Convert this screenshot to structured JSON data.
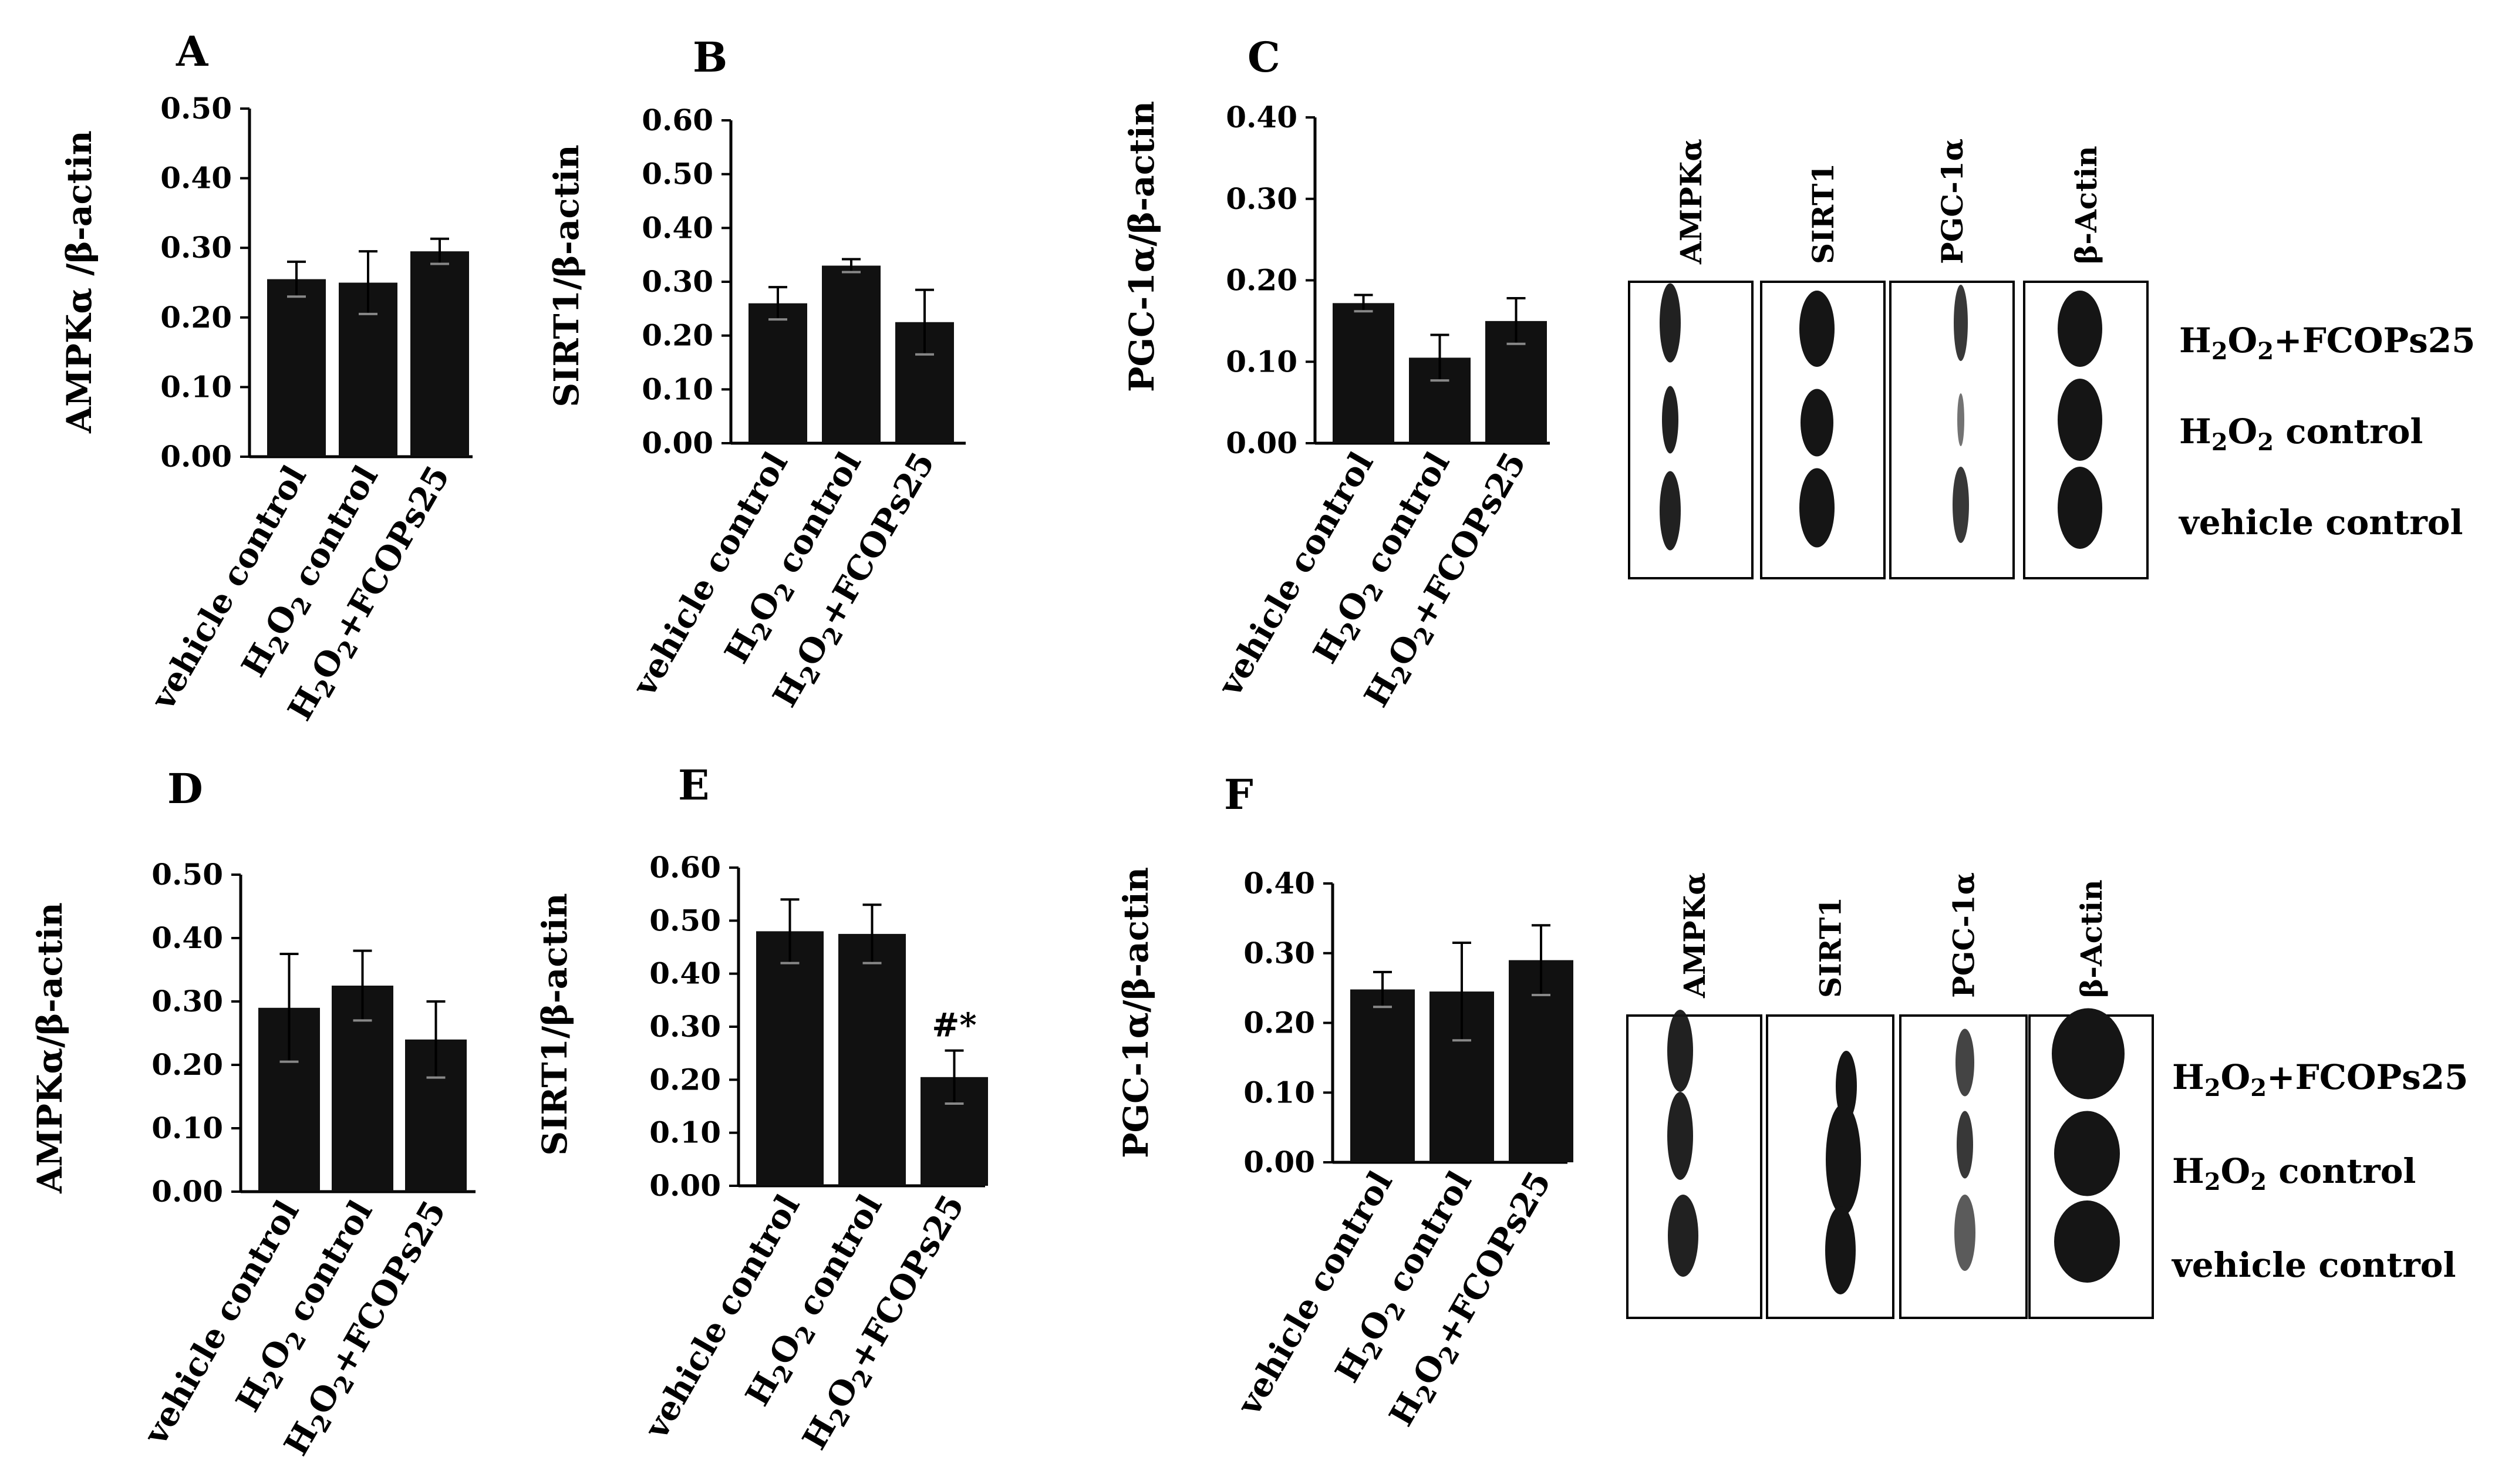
{
  "chart_data": [
    {
      "panel": "A",
      "type": "bar",
      "ylabel": "AMPKα /β-actin",
      "categories": [
        "vehicle control",
        "H2O2 control",
        "H2O2+FCOPs25"
      ],
      "values": [
        0.255,
        0.25,
        0.295
      ],
      "errors": [
        0.025,
        0.045,
        0.018
      ],
      "ylim": [
        0,
        0.5
      ],
      "yticks": [
        "0.00",
        "0.10",
        "0.20",
        "0.30",
        "0.40",
        "0.50"
      ],
      "annotations": [
        "",
        "",
        ""
      ]
    },
    {
      "panel": "B",
      "type": "bar",
      "ylabel": "SIRT1/β-actin",
      "categories": [
        "vehicle control",
        "H2O2 control",
        "H2O2+FCOPs25"
      ],
      "values": [
        0.26,
        0.33,
        0.225
      ],
      "errors": [
        0.03,
        0.012,
        0.06
      ],
      "ylim": [
        0,
        0.6
      ],
      "yticks": [
        "0.00",
        "0.10",
        "0.20",
        "0.30",
        "0.40",
        "0.50",
        "0.60"
      ],
      "annotations": [
        "",
        "",
        ""
      ]
    },
    {
      "panel": "C",
      "type": "bar",
      "ylabel": "PGC-1α/β-actin",
      "categories": [
        "vehicle control",
        "H2O2 control",
        "H2O2+FCOPs25"
      ],
      "values": [
        0.172,
        0.105,
        0.15
      ],
      "errors": [
        0.01,
        0.028,
        0.028
      ],
      "ylim": [
        0,
        0.4
      ],
      "yticks": [
        "0.00",
        "0.10",
        "0.20",
        "0.30",
        "0.40"
      ],
      "annotations": [
        "",
        "",
        ""
      ]
    },
    {
      "panel": "D",
      "type": "bar",
      "ylabel": "AMPKα/β-actin",
      "categories": [
        "vehicle control",
        "H2O2 control",
        "H2O2+FCOPs25"
      ],
      "values": [
        0.29,
        0.325,
        0.24
      ],
      "errors": [
        0.085,
        0.055,
        0.06
      ],
      "ylim": [
        0,
        0.5
      ],
      "yticks": [
        "0.00",
        "0.10",
        "0.20",
        "0.30",
        "0.40",
        "0.50"
      ],
      "annotations": [
        "",
        "",
        ""
      ]
    },
    {
      "panel": "E",
      "type": "bar",
      "ylabel": "SIRT1/β-actin",
      "categories": [
        "vehicle control",
        "H2O2 control",
        "H2O2+FCOPs25"
      ],
      "values": [
        0.48,
        0.475,
        0.205
      ],
      "errors": [
        0.06,
        0.055,
        0.05
      ],
      "ylim": [
        0,
        0.6
      ],
      "yticks": [
        "0.00",
        "0.10",
        "0.20",
        "0.30",
        "0.40",
        "0.50",
        "0.60"
      ],
      "annotations": [
        "",
        "",
        "#*"
      ]
    },
    {
      "panel": "F",
      "type": "bar",
      "ylabel": "PGC-1α/β-actin",
      "categories": [
        "vehicle control",
        "H2O2 control",
        "H2O2+FCOPs25"
      ],
      "values": [
        0.248,
        0.245,
        0.29
      ],
      "errors": [
        0.025,
        0.07,
        0.05
      ],
      "ylim": [
        0,
        0.4
      ],
      "yticks": [
        "0.00",
        "0.10",
        "0.20",
        "0.30",
        "0.40"
      ],
      "annotations": [
        "",
        "",
        ""
      ]
    }
  ],
  "blots": [
    {
      "columns": [
        "AMPKα",
        "SIRT1",
        "PGC-1α",
        "β-Actin"
      ],
      "rows": [
        "H2O2+FCOPs25",
        "H2O2 control",
        "vehicle control"
      ]
    },
    {
      "columns": [
        "AMPKα",
        "SIRT1",
        "PGC-1α",
        "β-Actin"
      ],
      "rows": [
        "H2O2+FCOPs25",
        "H2O2 control",
        "vehicle control"
      ]
    }
  ],
  "colors": {
    "bar": "#111111",
    "axis": "#000000",
    "band": "#151515"
  }
}
